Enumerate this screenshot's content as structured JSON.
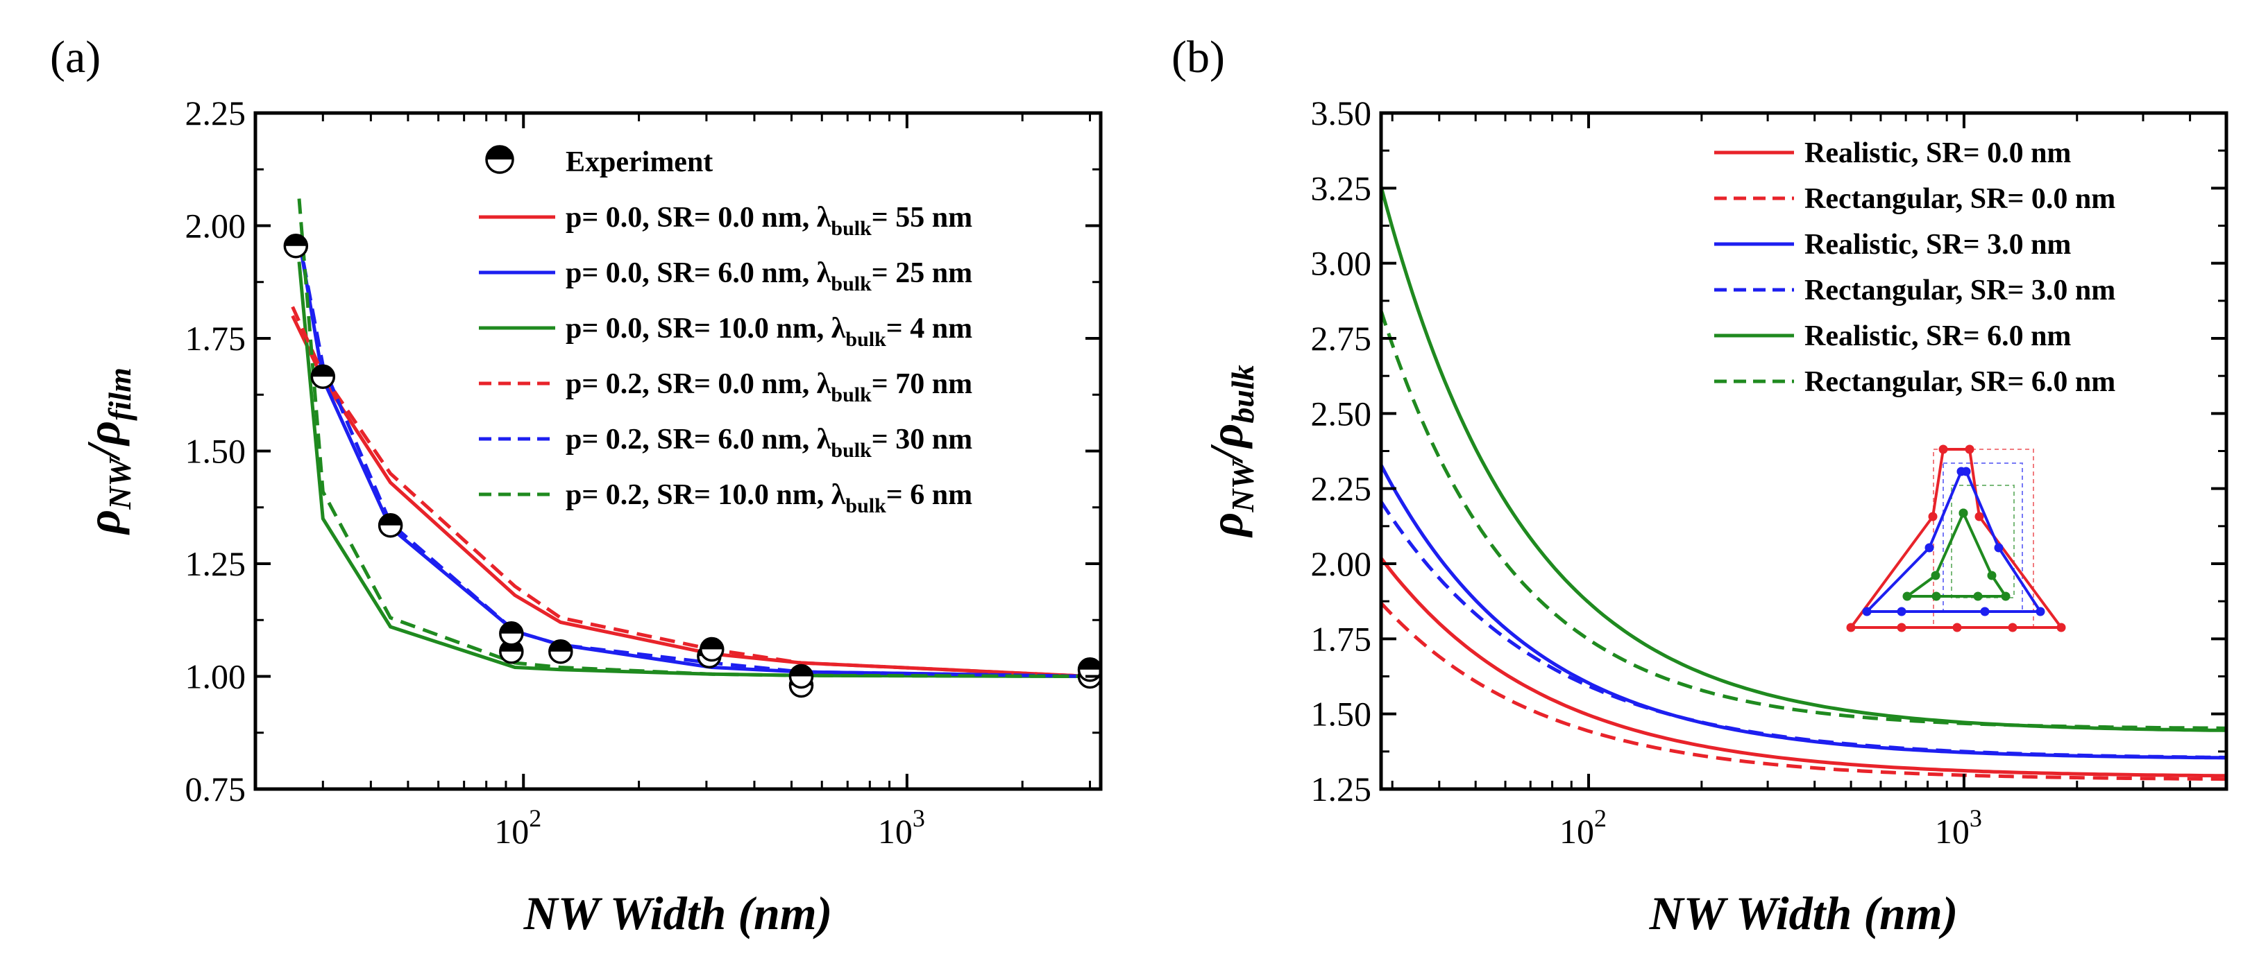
{
  "chart_data": [
    {
      "panel_label": "(a)",
      "type": "line",
      "x_scale": "log",
      "xlim": [
        20,
        3200
      ],
      "ylim": [
        0.75,
        2.25
      ],
      "xlabel": "NW Width (nm)",
      "ylabel": {
        "base": "ρ",
        "num_sub": "NW",
        "sep": "/",
        "den_base": "ρ",
        "den_sub": "film"
      },
      "y_ticks": [
        "0.75",
        "1.00",
        "1.25",
        "1.50",
        "1.75",
        "2.00",
        "2.25"
      ],
      "x_ticks": [
        {
          "base": "10",
          "exp": "2"
        },
        {
          "base": "10",
          "exp": "3"
        }
      ],
      "legend_position": "top-right",
      "legend": [
        {
          "label": "Experiment",
          "marker": "half-filled-circle"
        },
        {
          "label": "p= 0.0, SR= 0.0 nm, λ",
          "sub": "bulk",
          "tail": "= 55 nm",
          "color": "#e8232a",
          "dash": "solid"
        },
        {
          "label": "p= 0.0, SR= 6.0 nm, λ",
          "sub": "bulk",
          "tail": "= 25 nm",
          "color": "#1d1ff0",
          "dash": "solid"
        },
        {
          "label": "p= 0.0, SR= 10.0 nm, λ",
          "sub": "bulk",
          "tail": "= 4 nm",
          "color": "#1f8a1f",
          "dash": "solid"
        },
        {
          "label": "p= 0.2, SR= 0.0 nm, λ",
          "sub": "bulk",
          "tail": "= 70 nm",
          "color": "#e8232a",
          "dash": "dashed"
        },
        {
          "label": "p= 0.2, SR= 6.0 nm, λ",
          "sub": "bulk",
          "tail": "= 30 nm",
          "color": "#1d1ff0",
          "dash": "dashed"
        },
        {
          "label": "p= 0.2, SR= 10.0 nm, λ",
          "sub": "bulk",
          "tail": "= 6 nm",
          "color": "#1f8a1f",
          "dash": "dashed"
        }
      ],
      "series": [
        {
          "name": "p=0.0 SR=0.0 λ=55",
          "color": "#e8232a",
          "dash": "solid",
          "x": [
            25,
            30,
            45,
            95,
            125,
            310,
            530,
            3000
          ],
          "y": [
            1.8,
            1.66,
            1.43,
            1.18,
            1.12,
            1.05,
            1.03,
            1.0
          ]
        },
        {
          "name": "p=0.0 SR=6.0 λ=25",
          "color": "#1d1ff0",
          "dash": "solid",
          "x": [
            26,
            30,
            45,
            95,
            125,
            310,
            530,
            3000
          ],
          "y": [
            1.97,
            1.66,
            1.33,
            1.1,
            1.07,
            1.02,
            1.01,
            1.0
          ]
        },
        {
          "name": "p=0.0 SR=10.0 λ=4",
          "color": "#1f8a1f",
          "dash": "solid",
          "x": [
            26,
            30,
            45,
            95,
            125,
            310,
            530,
            3000
          ],
          "y": [
            1.92,
            1.35,
            1.11,
            1.02,
            1.015,
            1.005,
            1.002,
            1.0
          ]
        },
        {
          "name": "p=0.2 SR=0.0 λ=70",
          "color": "#e8232a",
          "dash": "dashed",
          "x": [
            25,
            30,
            45,
            95,
            125,
            310,
            530,
            3000
          ],
          "y": [
            1.82,
            1.67,
            1.45,
            1.2,
            1.13,
            1.06,
            1.03,
            1.0
          ]
        },
        {
          "name": "p=0.2 SR=6.0 λ=30",
          "color": "#1d1ff0",
          "dash": "dashed",
          "x": [
            26,
            30,
            45,
            95,
            125,
            310,
            530,
            3000
          ],
          "y": [
            1.97,
            1.69,
            1.34,
            1.1,
            1.07,
            1.03,
            1.01,
            1.0
          ]
        },
        {
          "name": "p=0.2 SR=10.0 λ=6",
          "color": "#1f8a1f",
          "dash": "dashed",
          "x": [
            26,
            30,
            45,
            95,
            125,
            310,
            530,
            3000
          ],
          "y": [
            2.06,
            1.41,
            1.13,
            1.03,
            1.02,
            1.005,
            1.002,
            1.0
          ]
        }
      ],
      "experiment": {
        "x": [
          25.5,
          30,
          45,
          93,
          93,
          125,
          305,
          310,
          530,
          530,
          3000,
          3000
        ],
        "y": [
          1.955,
          1.665,
          1.335,
          1.055,
          1.095,
          1.055,
          1.045,
          1.06,
          0.98,
          1.0,
          1.0,
          1.015
        ]
      }
    },
    {
      "panel_label": "(b)",
      "type": "line",
      "x_scale": "log",
      "xlim": [
        28,
        5000
      ],
      "ylim": [
        1.25,
        3.5
      ],
      "xlabel": "NW Width (nm)",
      "ylabel": {
        "base": "ρ",
        "num_sub": "NW",
        "sep": "/",
        "den_base": "ρ",
        "den_sub": "bulk"
      },
      "y_ticks": [
        "1.25",
        "1.50",
        "1.75",
        "2.00",
        "2.25",
        "2.50",
        "2.75",
        "3.00",
        "3.25",
        "3.50"
      ],
      "x_ticks": [
        {
          "base": "10",
          "exp": "2"
        },
        {
          "base": "10",
          "exp": "3"
        }
      ],
      "legend_position": "top-right",
      "legend": [
        {
          "label": "Realistic, SR= 0.0 nm",
          "color": "#e8232a",
          "dash": "solid"
        },
        {
          "label": "Rectangular, SR= 0.0 nm",
          "color": "#e8232a",
          "dash": "dashed"
        },
        {
          "label": "Realistic, SR= 3.0 nm",
          "color": "#1d1ff0",
          "dash": "solid"
        },
        {
          "label": "Rectangular, SR= 3.0 nm",
          "color": "#1d1ff0",
          "dash": "dashed"
        },
        {
          "label": "Realistic, SR= 6.0 nm",
          "color": "#1f8a1f",
          "dash": "solid"
        },
        {
          "label": "Rectangular, SR= 6.0 nm",
          "color": "#1f8a1f",
          "dash": "dashed"
        }
      ],
      "series_model": "y = a + b / x^c",
      "series": [
        {
          "name": "Realistic SR=0.0",
          "color": "#e8232a",
          "dash": "solid",
          "a": 1.29,
          "b": 19.8,
          "c": 0.991
        },
        {
          "name": "Rectangular SR=0.0",
          "color": "#e8232a",
          "dash": "dashed",
          "a": 1.28,
          "b": 17.0,
          "c": 1.009
        },
        {
          "name": "Realistic SR=3.0",
          "color": "#1d1ff0",
          "dash": "solid",
          "a": 1.35,
          "b": 33.8,
          "c": 1.063
        },
        {
          "name": "Rectangular SR=3.0",
          "color": "#1d1ff0",
          "dash": "dashed",
          "a": 1.35,
          "b": 23.2,
          "c": 0.99
        },
        {
          "name": "Realistic SR=6.0",
          "color": "#1f8a1f",
          "dash": "solid",
          "a": 1.44,
          "b": 78.4,
          "c": 1.13
        },
        {
          "name": "Rectangular SR=6.0",
          "color": "#1f8a1f",
          "dash": "dashed",
          "a": 1.45,
          "b": 78.7,
          "c": 1.211
        }
      ],
      "inset": "cross-section-schematic-icon"
    }
  ]
}
